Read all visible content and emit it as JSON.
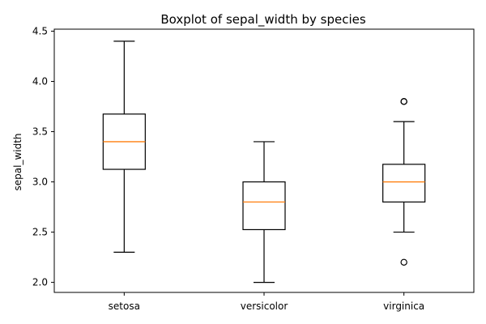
{
  "chart_data": {
    "type": "boxplot",
    "title": "Boxplot of sepal_width by species",
    "xlabel": "",
    "ylabel": "sepal_width",
    "ylim": [
      1.9,
      4.52
    ],
    "yticks": [
      2.0,
      2.5,
      3.0,
      3.5,
      4.0,
      4.5
    ],
    "ytick_labels": [
      "2.0",
      "2.5",
      "3.0",
      "3.5",
      "4.0",
      "4.5"
    ],
    "categories": [
      "setosa",
      "versicolor",
      "virginica"
    ],
    "boxes": [
      {
        "category": "setosa",
        "whisker_low": 2.3,
        "q1": 3.125,
        "median": 3.4,
        "q3": 3.675,
        "whisker_high": 4.4,
        "outliers": []
      },
      {
        "category": "versicolor",
        "whisker_low": 2.0,
        "q1": 2.525,
        "median": 2.8,
        "q3": 3.0,
        "whisker_high": 3.4,
        "outliers": []
      },
      {
        "category": "virginica",
        "whisker_low": 2.5,
        "q1": 2.8,
        "median": 3.0,
        "q3": 3.175,
        "whisker_high": 3.6,
        "outliers": [
          3.8,
          3.8,
          2.2
        ]
      }
    ],
    "grid": false,
    "colors": {
      "box": "#000000",
      "median": "#ff7f0e",
      "outlier": "#000000"
    }
  }
}
